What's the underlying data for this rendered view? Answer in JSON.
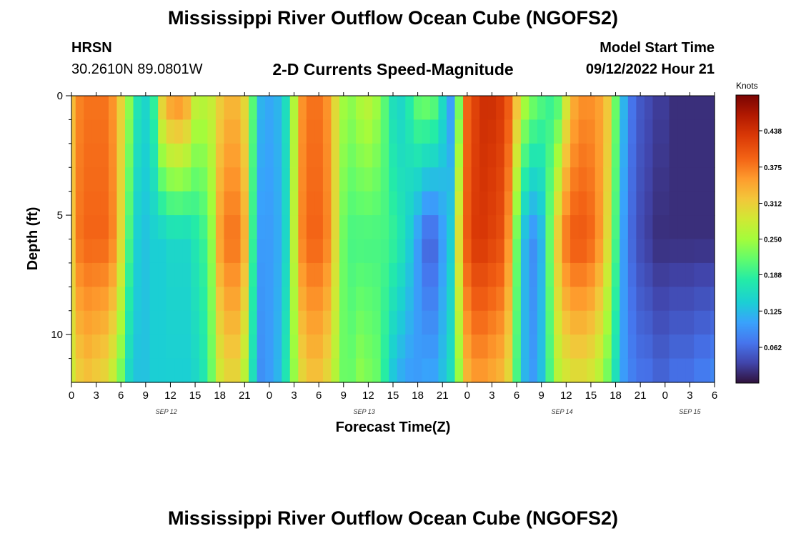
{
  "header": {
    "title": "Mississippi River Outflow Ocean Cube (NGOFS2)",
    "station_name": "HRSN",
    "station_coords": "30.2610N  89.0801W",
    "subtitle": "2-D Currents Speed-Magnitude",
    "model_start_label": "Model Start Time",
    "model_start_value": "09/12/2022 Hour 21"
  },
  "footer": {
    "title": "Mississippi River Outflow Ocean Cube (NGOFS2)"
  },
  "chart_data": {
    "type": "heatmap",
    "title": "2-D Currents Speed-Magnitude",
    "xlabel": "Forecast Time(Z)",
    "ylabel": "Depth (ft)",
    "x_range_hours": [
      0,
      78
    ],
    "ylim": [
      0,
      12
    ],
    "x_tick_labels": [
      "0",
      "3",
      "6",
      "9",
      "12",
      "15",
      "18",
      "21",
      "0",
      "3",
      "6",
      "9",
      "12",
      "15",
      "18",
      "21",
      "0",
      "3",
      "6",
      "9",
      "12",
      "15",
      "18",
      "21",
      "0",
      "3",
      "6"
    ],
    "y_tick_values": [
      0,
      5,
      10
    ],
    "y_tick_labels": [
      "0",
      "5",
      "10"
    ],
    "date_labels": [
      {
        "hour": 11.5,
        "label": "SEP 12"
      },
      {
        "hour": 35.5,
        "label": "SEP 13"
      },
      {
        "hour": 59.5,
        "label": "SEP 14"
      },
      {
        "hour": 75.0,
        "label": "SEP 15"
      }
    ],
    "colorbar": {
      "unit": "Knots",
      "min": 0,
      "max": 0.5,
      "tick_values": [
        0.062,
        0.125,
        0.188,
        0.25,
        0.312,
        0.375,
        0.438
      ],
      "tick_labels": [
        "0.062",
        "0.125",
        "0.188",
        "0.250",
        "0.312",
        "0.375",
        "0.438"
      ]
    },
    "speed_profile_hours": [
      0,
      1,
      2,
      3,
      4,
      5,
      6,
      7,
      8,
      9,
      10,
      11,
      12,
      13,
      14,
      15,
      16,
      17,
      18,
      19,
      20,
      21,
      22,
      23,
      24,
      25,
      26,
      27,
      28,
      29,
      30,
      31,
      32,
      33,
      34,
      35,
      36,
      37,
      38,
      39,
      40,
      41,
      42,
      43,
      44,
      45,
      46,
      47,
      48,
      49,
      50,
      51,
      52,
      53,
      54,
      55,
      56,
      57,
      58,
      59,
      60,
      61,
      62,
      63,
      64,
      65,
      66,
      67,
      68,
      69,
      70,
      71,
      72,
      73,
      74,
      75,
      76,
      77,
      78
    ],
    "speed_profile_surface": [
      0.33,
      0.37,
      0.38,
      0.38,
      0.38,
      0.36,
      0.31,
      0.24,
      0.17,
      0.15,
      0.19,
      0.32,
      0.36,
      0.37,
      0.35,
      0.28,
      0.27,
      0.28,
      0.31,
      0.33,
      0.33,
      0.3,
      0.21,
      0.12,
      0.11,
      0.12,
      0.16,
      0.26,
      0.36,
      0.38,
      0.38,
      0.36,
      0.3,
      0.25,
      0.24,
      0.26,
      0.27,
      0.25,
      0.21,
      0.16,
      0.15,
      0.18,
      0.22,
      0.23,
      0.22,
      0.16,
      0.1,
      0.22,
      0.39,
      0.42,
      0.44,
      0.44,
      0.43,
      0.4,
      0.33,
      0.26,
      0.23,
      0.21,
      0.19,
      0.2,
      0.28,
      0.34,
      0.36,
      0.36,
      0.35,
      0.32,
      0.22,
      0.12,
      0.07,
      0.05,
      0.04,
      0.03,
      0.03,
      0.02,
      0.02,
      0.02,
      0.02,
      0.02,
      0.02
    ],
    "speed_profile_mid": [
      0.32,
      0.38,
      0.39,
      0.39,
      0.39,
      0.37,
      0.3,
      0.2,
      0.14,
      0.13,
      0.14,
      0.14,
      0.15,
      0.15,
      0.15,
      0.17,
      0.19,
      0.24,
      0.35,
      0.38,
      0.38,
      0.34,
      0.19,
      0.1,
      0.1,
      0.11,
      0.15,
      0.27,
      0.37,
      0.39,
      0.39,
      0.37,
      0.3,
      0.22,
      0.2,
      0.2,
      0.2,
      0.2,
      0.2,
      0.19,
      0.17,
      0.14,
      0.1,
      0.06,
      0.06,
      0.1,
      0.14,
      0.3,
      0.4,
      0.43,
      0.43,
      0.42,
      0.41,
      0.36,
      0.22,
      0.12,
      0.09,
      0.12,
      0.22,
      0.32,
      0.38,
      0.4,
      0.4,
      0.39,
      0.36,
      0.3,
      0.2,
      0.1,
      0.06,
      0.04,
      0.03,
      0.02,
      0.02,
      0.02,
      0.02,
      0.02,
      0.02,
      0.02,
      0.02
    ],
    "speed_profile_bottom": [
      0.28,
      0.31,
      0.32,
      0.31,
      0.3,
      0.27,
      0.22,
      0.15,
      0.13,
      0.13,
      0.14,
      0.14,
      0.14,
      0.14,
      0.14,
      0.15,
      0.17,
      0.22,
      0.28,
      0.3,
      0.3,
      0.26,
      0.16,
      0.09,
      0.1,
      0.12,
      0.17,
      0.24,
      0.3,
      0.32,
      0.32,
      0.3,
      0.26,
      0.22,
      0.22,
      0.24,
      0.23,
      0.22,
      0.18,
      0.13,
      0.11,
      0.1,
      0.1,
      0.11,
      0.11,
      0.13,
      0.16,
      0.24,
      0.33,
      0.35,
      0.35,
      0.34,
      0.33,
      0.3,
      0.2,
      0.12,
      0.1,
      0.13,
      0.2,
      0.26,
      0.28,
      0.29,
      0.29,
      0.28,
      0.26,
      0.22,
      0.16,
      0.1,
      0.08,
      0.07,
      0.07,
      0.06,
      0.06,
      0.07,
      0.07,
      0.07,
      0.08,
      0.08,
      0.09
    ],
    "depth_layers": 12
  }
}
